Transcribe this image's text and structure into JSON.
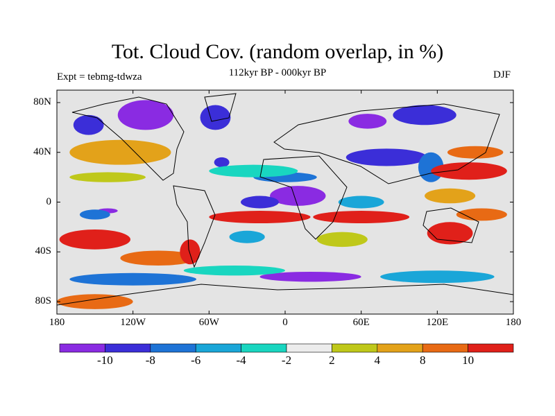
{
  "header": {
    "title": "Tot. Cloud Cov. (random overlap, in %)",
    "left_tag": "Expt = tebmg-tdwza",
    "center_tag": "112kyr BP - 000kyr BP",
    "right_tag": "DJF"
  },
  "map": {
    "projection": "cylindrical-equidistant",
    "lon_range": [
      -180,
      180
    ],
    "lat_range": [
      -90,
      90
    ],
    "lat_labels": [
      "80N",
      "40N",
      "0",
      "40S",
      "80S"
    ],
    "lat_values": [
      80,
      40,
      0,
      -40,
      -80
    ],
    "lon_labels": [
      "180",
      "120W",
      "60W",
      "0",
      "60E",
      "120E",
      "180"
    ],
    "lon_values": [
      -180,
      -120,
      -60,
      0,
      60,
      120,
      180
    ],
    "anomaly_regions": [
      {
        "category": 0,
        "lon": -140,
        "lat": -7,
        "rlon": 8,
        "rlat": 2
      },
      {
        "category": 1,
        "lon": -50,
        "lat": 32,
        "rlon": 6,
        "rlat": 4
      },
      {
        "category": 0,
        "lon": -110,
        "lat": 70,
        "rlon": 22,
        "rlat": 12
      },
      {
        "category": 1,
        "lon": -55,
        "lat": 68,
        "rlon": 12,
        "rlat": 10
      },
      {
        "category": 1,
        "lon": -155,
        "lat": 62,
        "rlon": 12,
        "rlat": 8
      },
      {
        "category": 9,
        "lon": -150,
        "lat": -30,
        "rlon": 28,
        "rlat": 8
      },
      {
        "category": 8,
        "lon": -100,
        "lat": -45,
        "rlon": 30,
        "rlat": 6
      },
      {
        "category": 9,
        "lon": -75,
        "lat": -40,
        "rlon": 8,
        "rlat": 10
      },
      {
        "category": 7,
        "lon": -130,
        "lat": 40,
        "rlon": 40,
        "rlat": 10
      },
      {
        "category": 6,
        "lon": -140,
        "lat": 20,
        "rlon": 30,
        "rlat": 4
      },
      {
        "category": 0,
        "lon": 10,
        "lat": 5,
        "rlon": 22,
        "rlat": 8
      },
      {
        "category": 1,
        "lon": -20,
        "lat": 0,
        "rlon": 15,
        "rlat": 5
      },
      {
        "category": 9,
        "lon": -20,
        "lat": -12,
        "rlon": 40,
        "rlat": 5
      },
      {
        "category": 9,
        "lon": 60,
        "lat": -12,
        "rlon": 38,
        "rlat": 5
      },
      {
        "category": 2,
        "lon": 0,
        "lat": 20,
        "rlon": 25,
        "rlat": 4
      },
      {
        "category": 3,
        "lon": -30,
        "lat": -28,
        "rlon": 14,
        "rlat": 5
      },
      {
        "category": 4,
        "lon": -25,
        "lat": 25,
        "rlon": 35,
        "rlat": 5
      },
      {
        "category": 1,
        "lon": 80,
        "lat": 36,
        "rlon": 32,
        "rlat": 7
      },
      {
        "category": 2,
        "lon": 115,
        "lat": 28,
        "rlon": 10,
        "rlat": 12
      },
      {
        "category": 9,
        "lon": 145,
        "lat": 25,
        "rlon": 30,
        "rlat": 7
      },
      {
        "category": 8,
        "lon": 150,
        "lat": 40,
        "rlon": 22,
        "rlat": 5
      },
      {
        "category": 7,
        "lon": 130,
        "lat": 5,
        "rlon": 20,
        "rlat": 6
      },
      {
        "category": 9,
        "lon": 130,
        "lat": -25,
        "rlon": 18,
        "rlat": 9
      },
      {
        "category": 8,
        "lon": 155,
        "lat": -10,
        "rlon": 20,
        "rlat": 5
      },
      {
        "category": 0,
        "lon": 65,
        "lat": 65,
        "rlon": 15,
        "rlat": 6
      },
      {
        "category": 1,
        "lon": 110,
        "lat": 70,
        "rlon": 25,
        "rlat": 8
      },
      {
        "category": 0,
        "lon": 20,
        "lat": -60,
        "rlon": 40,
        "rlat": 4
      },
      {
        "category": 2,
        "lon": -120,
        "lat": -62,
        "rlon": 50,
        "rlat": 5
      },
      {
        "category": 3,
        "lon": 120,
        "lat": -60,
        "rlon": 45,
        "rlat": 5
      },
      {
        "category": 4,
        "lon": -40,
        "lat": -55,
        "rlon": 40,
        "rlat": 4
      },
      {
        "category": 8,
        "lon": -150,
        "lat": -80,
        "rlon": 30,
        "rlat": 6
      },
      {
        "category": 2,
        "lon": -150,
        "lat": -10,
        "rlon": 12,
        "rlat": 4
      },
      {
        "category": 6,
        "lon": 45,
        "lat": -30,
        "rlon": 20,
        "rlat": 6
      },
      {
        "category": 3,
        "lon": 60,
        "lat": 0,
        "rlon": 18,
        "rlat": 5
      }
    ]
  },
  "colorbar": {
    "colors": [
      "#8a2be2",
      "#3b2ed8",
      "#1e73d6",
      "#1aa6d8",
      "#19d6c0",
      "#ececec",
      "#bfc81a",
      "#e3a21a",
      "#e86a14",
      "#e0201a"
    ],
    "tick_labels": [
      "-10",
      "-8",
      "-6",
      "-4",
      "-2",
      "2",
      "4",
      "8",
      "10"
    ]
  }
}
